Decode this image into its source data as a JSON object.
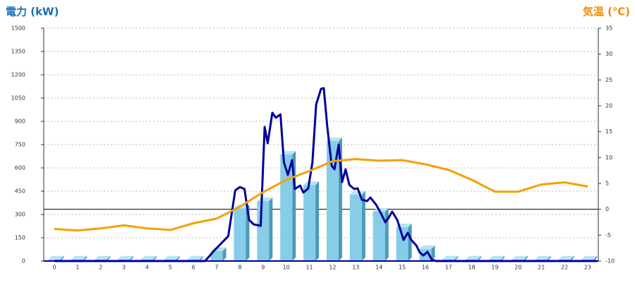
{
  "chart_data": {
    "type": "combo",
    "y_label": "電力 (kW)",
    "y2_label": "気温 (℃)",
    "categories": [
      "0",
      "1",
      "2",
      "3",
      "4",
      "5",
      "6",
      "7",
      "8",
      "9",
      "10",
      "11",
      "12",
      "13",
      "14",
      "15",
      "16",
      "17",
      "18",
      "19",
      "20",
      "21",
      "22",
      "23"
    ],
    "ylim": [
      0,
      1500
    ],
    "yticks": [
      0,
      150,
      300,
      450,
      600,
      750,
      900,
      1050,
      1200,
      1350,
      1500
    ],
    "y2lim": [
      -10,
      35
    ],
    "y2ticks": [
      -10,
      -5,
      0,
      5,
      10,
      15,
      20,
      25,
      30,
      35
    ],
    "grid": true,
    "series": [
      {
        "type": "bar",
        "color": "#87cde8",
        "values": [
          10,
          10,
          10,
          10,
          10,
          10,
          10,
          65,
          340,
          386,
          686,
          490,
          773,
          427,
          318,
          218,
          77,
          10,
          10,
          10,
          10,
          10,
          10,
          10
        ]
      },
      {
        "type": "line",
        "color": "#000099",
        "x": [
          0,
          6.5,
          6.9,
          7.5,
          7.8,
          8.0,
          8.2,
          8.4,
          8.6,
          8.9,
          9.07,
          9.2,
          9.4,
          9.55,
          9.75,
          9.9,
          10.07,
          10.25,
          10.37,
          10.6,
          10.74,
          10.95,
          11.13,
          11.29,
          11.5,
          11.62,
          11.77,
          11.96,
          12.08,
          12.26,
          12.41,
          12.56,
          12.72,
          12.93,
          13.08,
          13.26,
          13.48,
          13.63,
          13.87,
          14.09,
          14.27,
          14.39,
          14.57,
          14.79,
          15.06,
          15.24,
          15.39,
          15.61,
          15.76,
          15.91,
          16.09,
          16.28,
          16.46,
          23.4
        ],
        "values": [
          0,
          0,
          68,
          160,
          455,
          477,
          464,
          264,
          236,
          227,
          864,
          759,
          955,
          923,
          945,
          636,
          555,
          650,
          464,
          486,
          441,
          468,
          636,
          1009,
          1109,
          1114,
          864,
          614,
          591,
          750,
          509,
          591,
          491,
          464,
          468,
          395,
          386,
          409,
          364,
          305,
          250,
          273,
          318,
          264,
          136,
          182,
          136,
          100,
          55,
          36,
          59,
          9,
          0,
          0
        ]
      },
      {
        "type": "line",
        "color": "#f5a000",
        "axis": "y2",
        "values": [
          -3.8,
          -4.1,
          -3.7,
          -3.1,
          -3.7,
          -4.0,
          -2.7,
          -1.8,
          0.5,
          3.3,
          5.7,
          7.4,
          9.3,
          9.7,
          9.4,
          9.5,
          8.7,
          7.6,
          5.7,
          3.4,
          3.4,
          4.8,
          5.2,
          4.4
        ]
      }
    ]
  }
}
